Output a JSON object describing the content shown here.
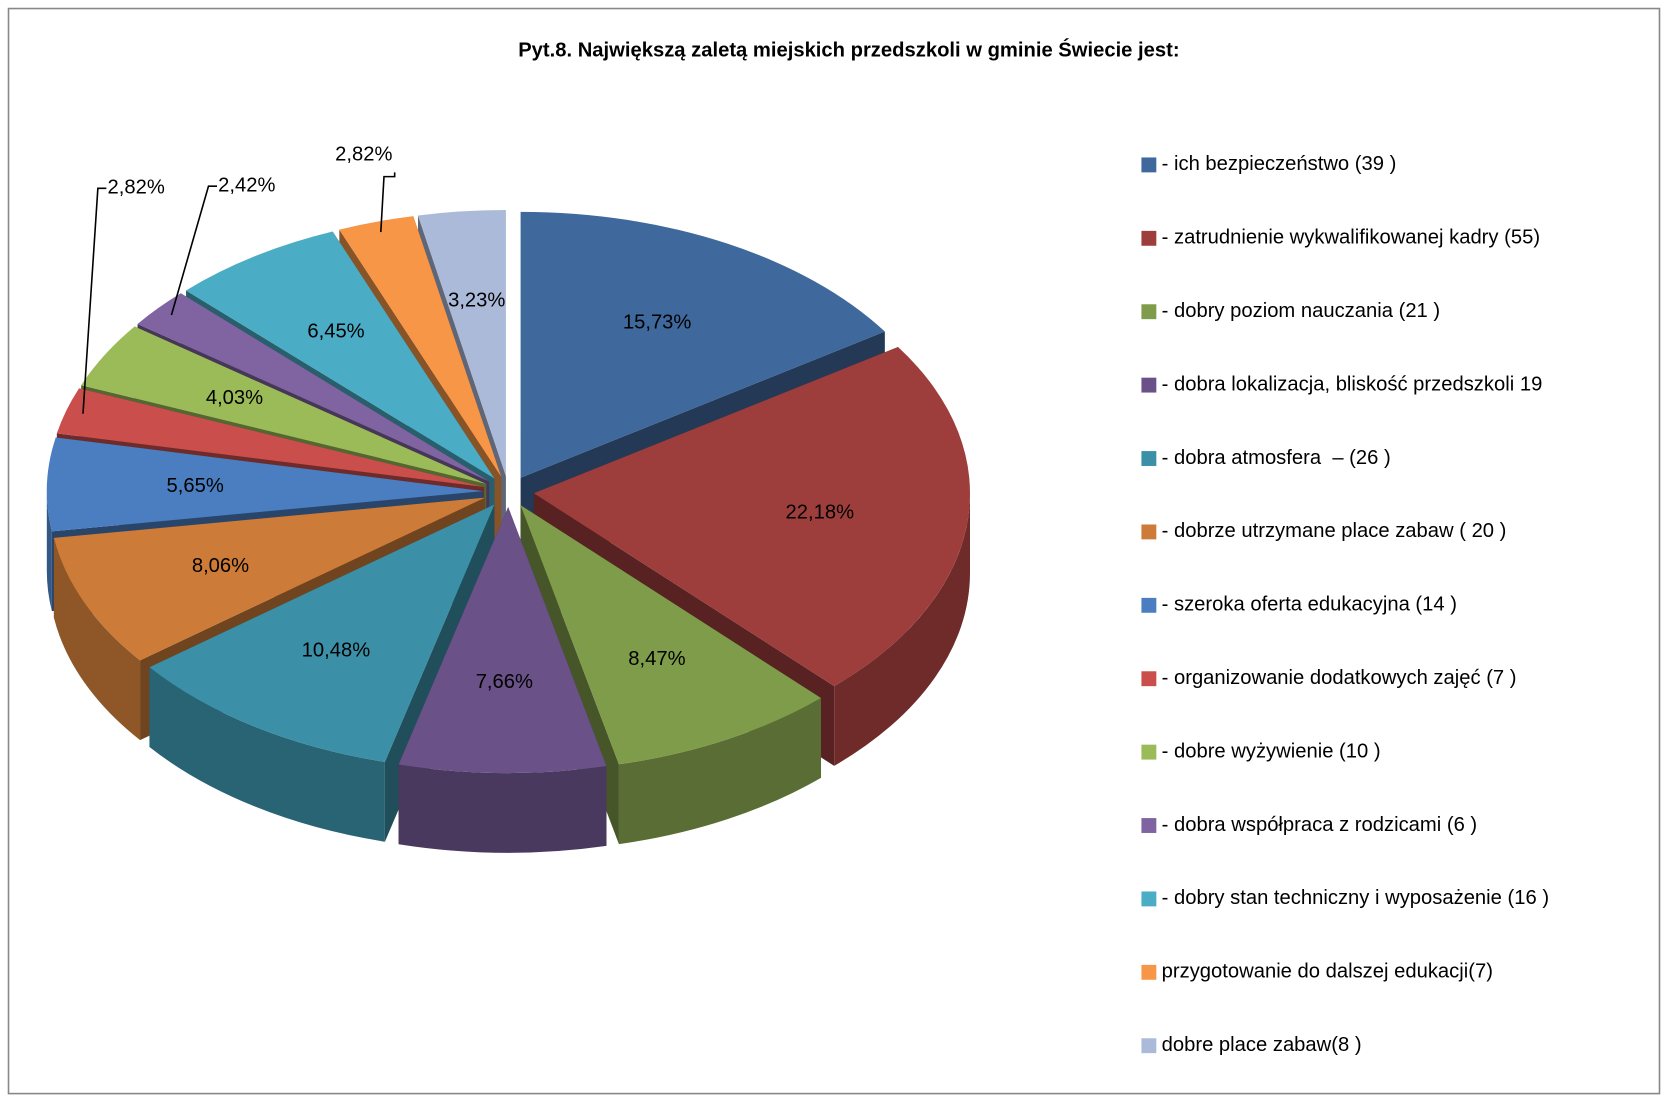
{
  "chart_data": {
    "type": "pie",
    "title": "Pyt.8. Największą zaletą miejskich przedszkoli w gminie Świecie jest:",
    "categories": [
      "- ich bezpieczeństwo (39 )",
      "- zatrudnienie wykwalifikowanej kadry (55)",
      "- dobry poziom nauczania (21 )",
      "- dobra lokalizacja, bliskość przedszkoli 19",
      "- dobra atmosfera  – (26 )",
      "- dobrze utrzymane place zabaw ( 20 )",
      "- szeroka oferta edukacyjna (14 )",
      "- organizowanie dodatkowych zajęć (7 )",
      "- dobre wyżywienie (10 )",
      "- dobra współpraca z rodzicami (6 )",
      "- dobry stan techniczny i wyposażenie (16 )",
      "przygotowanie do dalszej edukacji(7)",
      "dobre place zabaw(8 )"
    ],
    "values": [
      15.73,
      22.18,
      8.47,
      7.66,
      10.48,
      8.06,
      5.65,
      2.82,
      4.03,
      2.42,
      6.45,
      2.82,
      3.23
    ],
    "value_labels": [
      "15,73%",
      "22,18%",
      "8,47%",
      "7,66%",
      "10,48%",
      "8,06%",
      "5,65%",
      "2,82%",
      "4,03%",
      "2,42%",
      "6,45%",
      "2,82%",
      "3,23%"
    ],
    "colors": [
      "#3f689c",
      "#9e3e3c",
      "#7f9c4a",
      "#6a5187",
      "#3b8fa6",
      "#cc7b38",
      "#4a7ec0",
      "#ca4f4c",
      "#9bbb59",
      "#8064a2",
      "#4bacc6",
      "#f79646",
      "#aabad8"
    ],
    "legend": "right"
  }
}
